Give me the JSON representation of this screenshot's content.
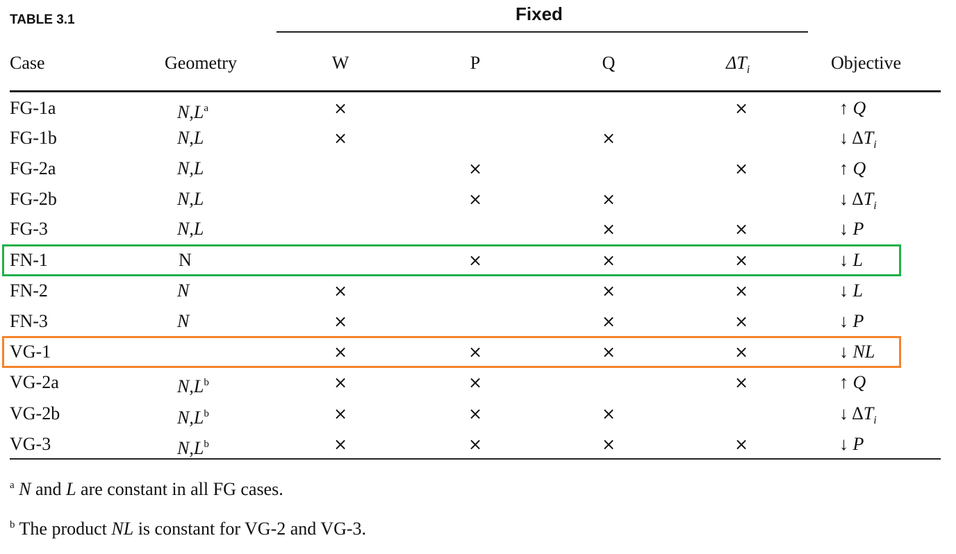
{
  "title": "TABLE 3.1",
  "group_header": "Fixed",
  "columns": [
    "Case",
    "Geometry",
    "W",
    "P",
    "Q",
    "ΔT",
    "Objective"
  ],
  "columns_sub": {
    "delta_t": "i"
  },
  "mark": "×",
  "rows": [
    {
      "case": "FG-1a",
      "geo": "N,L",
      "geo_sup": "a",
      "geo_italic": true,
      "W": true,
      "P": false,
      "Q": false,
      "T": true,
      "arrow": "↑",
      "obj": "Q",
      "obj_sub": ""
    },
    {
      "case": "FG-1b",
      "geo": "N,L",
      "geo_sup": "",
      "geo_italic": true,
      "W": true,
      "P": false,
      "Q": true,
      "T": false,
      "arrow": "↓",
      "obj": "ΔT",
      "obj_sub": "i"
    },
    {
      "case": "FG-2a",
      "geo": "N,L",
      "geo_sup": "",
      "geo_italic": true,
      "W": false,
      "P": true,
      "Q": false,
      "T": true,
      "arrow": "↑",
      "obj": "Q",
      "obj_sub": ""
    },
    {
      "case": "FG-2b",
      "geo": "N,L",
      "geo_sup": "",
      "geo_italic": true,
      "W": false,
      "P": true,
      "Q": true,
      "T": false,
      "arrow": "↓",
      "obj": "ΔT",
      "obj_sub": "i"
    },
    {
      "case": "FG-3",
      "geo": "N,L",
      "geo_sup": "",
      "geo_italic": true,
      "W": false,
      "P": false,
      "Q": true,
      "T": true,
      "arrow": "↓",
      "obj": "P",
      "obj_sub": ""
    },
    {
      "case": "FN-1",
      "geo": "N",
      "geo_sup": "",
      "geo_italic": false,
      "W": false,
      "P": true,
      "Q": true,
      "T": true,
      "arrow": "↓",
      "obj": "L",
      "obj_sub": ""
    },
    {
      "case": "FN-2",
      "geo": "N",
      "geo_sup": "",
      "geo_italic": true,
      "W": true,
      "P": false,
      "Q": true,
      "T": true,
      "arrow": "↓",
      "obj": "L",
      "obj_sub": ""
    },
    {
      "case": "FN-3",
      "geo": "N",
      "geo_sup": "",
      "geo_italic": true,
      "W": true,
      "P": false,
      "Q": true,
      "T": true,
      "arrow": "↓",
      "obj": "P",
      "obj_sub": ""
    },
    {
      "case": "VG-1",
      "geo": "",
      "geo_sup": "",
      "geo_italic": true,
      "W": true,
      "P": true,
      "Q": true,
      "T": true,
      "arrow": "↓",
      "obj": "NL",
      "obj_sub": ""
    },
    {
      "case": "VG-2a",
      "geo": "N,L",
      "geo_sup": "b",
      "geo_italic": true,
      "W": true,
      "P": true,
      "Q": false,
      "T": true,
      "arrow": "↑",
      "obj": "Q",
      "obj_sub": ""
    },
    {
      "case": "VG-2b",
      "geo": "N,L",
      "geo_sup": "b",
      "geo_italic": true,
      "W": true,
      "P": true,
      "Q": true,
      "T": false,
      "arrow": "↓",
      "obj": "ΔT",
      "obj_sub": "i"
    },
    {
      "case": "VG-3",
      "geo": "N,L",
      "geo_sup": "b",
      "geo_italic": true,
      "W": true,
      "P": true,
      "Q": true,
      "T": true,
      "arrow": "↓",
      "obj": "P",
      "obj_sub": ""
    }
  ],
  "highlights": [
    {
      "row": 5,
      "color": "#22b04b"
    },
    {
      "row": 8,
      "color": "#f5832a"
    }
  ],
  "footnotes": [
    {
      "mark": "a",
      "parts": [
        {
          "t": "N",
          "i": true
        },
        {
          "t": " and ",
          "i": false
        },
        {
          "t": "L",
          "i": true
        },
        {
          "t": " are constant in all FG cases.",
          "i": false
        }
      ]
    },
    {
      "mark": "b",
      "parts": [
        {
          "t": "The product ",
          "i": false
        },
        {
          "t": "NL",
          "i": true
        },
        {
          "t": " is constant for VG-2 and VG-3.",
          "i": false
        }
      ]
    }
  ]
}
